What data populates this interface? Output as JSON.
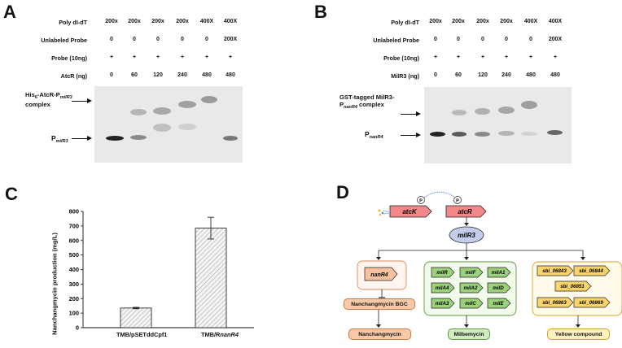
{
  "panels": {
    "a": "A",
    "b": "B",
    "c": "C",
    "d": "D"
  },
  "emsa_a": {
    "rows": [
      {
        "label": "Poly dI-dT",
        "values": [
          "200x",
          "200x",
          "200x",
          "200x",
          "400X",
          "400X"
        ]
      },
      {
        "label": "Unlabeled Probe",
        "values": [
          "0",
          "0",
          "0",
          "0",
          "0",
          "200X"
        ]
      },
      {
        "label": "Probe (10ng)",
        "values": [
          "+",
          "+",
          "+",
          "+",
          "+",
          "+"
        ]
      },
      {
        "label": "AtcR (ng)",
        "values": [
          "0",
          "60",
          "120",
          "240",
          "480",
          "480"
        ]
      }
    ],
    "complex_label_pre": "His",
    "complex_label_sub1": "6",
    "complex_label_mid": "-AtcR-P",
    "complex_label_sub2": "milR3",
    "complex_label_line2": "complex",
    "free_label_pre": "P",
    "free_label_sub": "milR3"
  },
  "emsa_b": {
    "rows": [
      {
        "label": "Poly dI-dT",
        "values": [
          "200x",
          "200x",
          "200x",
          "200x",
          "400X",
          "400X"
        ]
      },
      {
        "label": "Unlabeled Probe",
        "values": [
          "0",
          "0",
          "0",
          "0",
          "0",
          "200X"
        ]
      },
      {
        "label": "Probe (10ng)",
        "values": [
          "+",
          "+",
          "+",
          "+",
          "+",
          "+"
        ]
      },
      {
        "label": "MilR3 (ng)",
        "values": [
          "0",
          "60",
          "120",
          "240",
          "480",
          "480"
        ]
      }
    ],
    "complex_label_line1": "GST-tagged MilR3-",
    "complex_label_pre": "P",
    "complex_label_sub": "nanR4",
    "complex_label_post": " complex",
    "free_label_pre": "P",
    "free_label_sub": "nanR4"
  },
  "chart_data": {
    "type": "bar",
    "categories": [
      "TMB/pSETddCpf1",
      "TMB/RnanR4"
    ],
    "values": [
      135,
      685
    ],
    "errors": [
      5,
      75
    ],
    "ylabel": "Nanchangmycin production (mg/L)",
    "ylim": [
      0,
      800
    ],
    "yticks": [
      "0",
      "100",
      "200",
      "300",
      "400",
      "500",
      "600",
      "700",
      "800"
    ],
    "xlabel_1_pre": "TMB/R",
    "xlabel_1_italic": "nanR4"
  },
  "pathway": {
    "atcK": "atcK",
    "atcR": "atcR",
    "phospho": "P",
    "milR3": "milR3",
    "nanR4": "nanR4",
    "nan_bgc": "Nanchangmycin BGC",
    "nan_product": "Nanchangmycin",
    "mil_genes": [
      "milR",
      "milF",
      "milA1",
      "milA4",
      "milA2",
      "milD",
      "milA3",
      "milC",
      "milE"
    ],
    "mil_product": "Milbemycin",
    "sbi_genes": [
      "sbi_06843",
      "sbi_06844",
      "sbi_06851",
      "sbi_06863",
      "sbi_06869"
    ],
    "sbi_product": "Yellow compound",
    "colors": {
      "red": "#f4878a",
      "blue": "#c5cdec",
      "orange": "#f6c19c",
      "orange_border": "#e08a55",
      "green": "#9bd17a",
      "green_border": "#5f9745",
      "yellow": "#fbd46b",
      "yellow_border": "#d6a12a",
      "orange_box": "#f8c9a8",
      "green_box": "#d1ecc0",
      "yellow_box": "#fdf1bf"
    }
  }
}
